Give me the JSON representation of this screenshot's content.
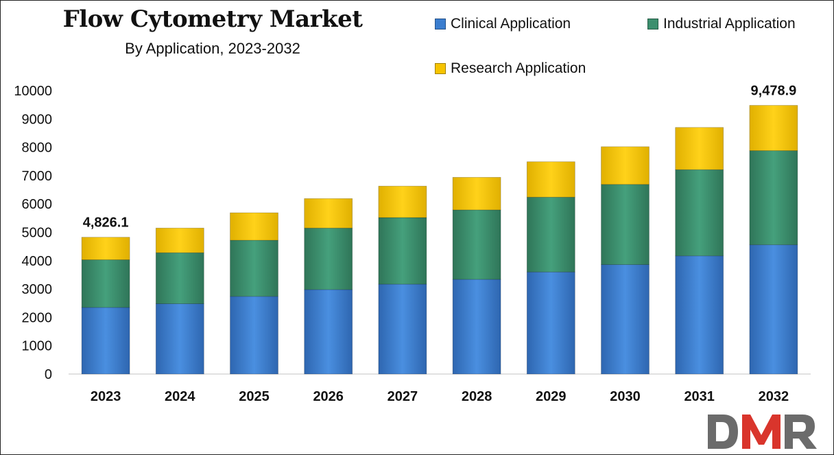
{
  "chart_data": {
    "type": "bar",
    "stacked": true,
    "title": "Flow Cytometry Market",
    "subtitle": "By Application, 2023-2032",
    "xlabel": "",
    "ylabel": "",
    "ylim": [
      0,
      10000
    ],
    "yticks": [
      "0",
      "1000",
      "2000",
      "3000",
      "4000",
      "5000",
      "6000",
      "7000",
      "8000",
      "9000",
      "10000"
    ],
    "categories": [
      "2023",
      "2024",
      "2025",
      "2026",
      "2027",
      "2028",
      "2029",
      "2030",
      "2031",
      "2032"
    ],
    "series": [
      {
        "name": "Clinical Application",
        "color": "#3a7dcf",
        "values": [
          2350,
          2480,
          2740,
          2980,
          3170,
          3340,
          3600,
          3860,
          4170,
          4560
        ]
      },
      {
        "name": "Industrial Application",
        "color": "#3c8f6e",
        "values": [
          1680,
          1800,
          1980,
          2170,
          2350,
          2450,
          2640,
          2830,
          3040,
          3320
        ]
      },
      {
        "name": "Research Application",
        "color": "#f6c400",
        "values": [
          796.1,
          870,
          970,
          1040,
          1110,
          1150,
          1250,
          1330,
          1490,
          1598.9
        ]
      }
    ],
    "data_labels": [
      {
        "category": "2023",
        "text": "4,826.1"
      },
      {
        "category": "2032",
        "text": "9,478.9"
      }
    ],
    "legend_position": "top-right",
    "grid": false
  },
  "logo": {
    "text": "DMR",
    "colors": [
      "#6b6b6b",
      "#d9352c"
    ]
  }
}
